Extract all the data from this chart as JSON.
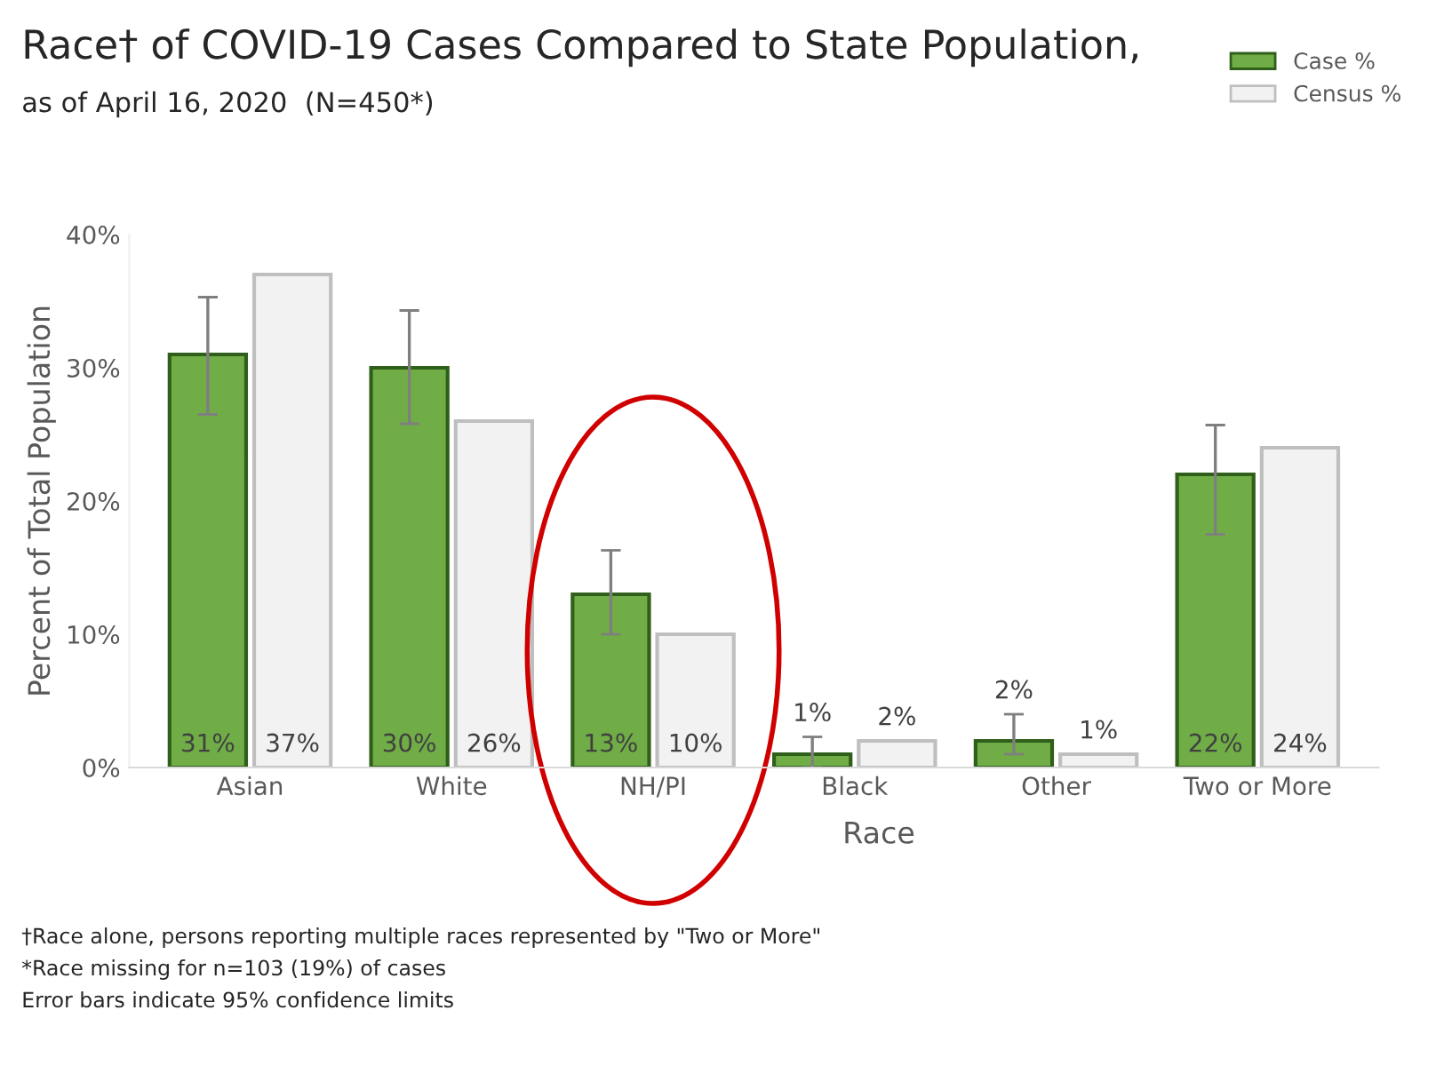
{
  "chart_data": {
    "type": "bar",
    "title": "Race† of COVID-19 Cases Compared to State Population,",
    "subtitle": "as of April 16, 2020  (N=450*)",
    "xlabel": "Race",
    "ylabel": "Percent of Total Population",
    "categories": [
      "Asian",
      "White",
      "NH/PI",
      "Black",
      "Other",
      "Two or More"
    ],
    "series": [
      {
        "name": "Case %",
        "color": "#70ad47",
        "values": [
          31,
          30,
          13,
          1,
          2,
          22
        ],
        "errors": [
          [
            26.5,
            35.3
          ],
          [
            25.8,
            34.3
          ],
          [
            10,
            16.3
          ],
          [
            0,
            2.3
          ],
          [
            1,
            4
          ],
          [
            17.5,
            25.7
          ]
        ],
        "value_labels": [
          "31%",
          "30%",
          "13%",
          "1%",
          "2%",
          "22%"
        ]
      },
      {
        "name": "Census %",
        "color": "#f2f2f2",
        "values": [
          37,
          26,
          10,
          2,
          1,
          24
        ],
        "value_labels": [
          "37%",
          "26%",
          "10%",
          "2%",
          "1%",
          "24%"
        ]
      }
    ],
    "ylim": [
      0,
      40
    ],
    "yticks": [
      {
        "value": 0,
        "label": "0%"
      },
      {
        "value": 10,
        "label": "10%"
      },
      {
        "value": 20,
        "label": "20%"
      },
      {
        "value": 30,
        "label": "30%"
      },
      {
        "value": 40,
        "label": "40%"
      }
    ],
    "legend": "top right",
    "grid": false,
    "annotations": [
      "†Race alone, persons reporting multiple races represented by \"Two or More\"",
      "*Race missing for n=103 (19%) of cases",
      "Error bars indicate 95% confidence limits"
    ]
  }
}
